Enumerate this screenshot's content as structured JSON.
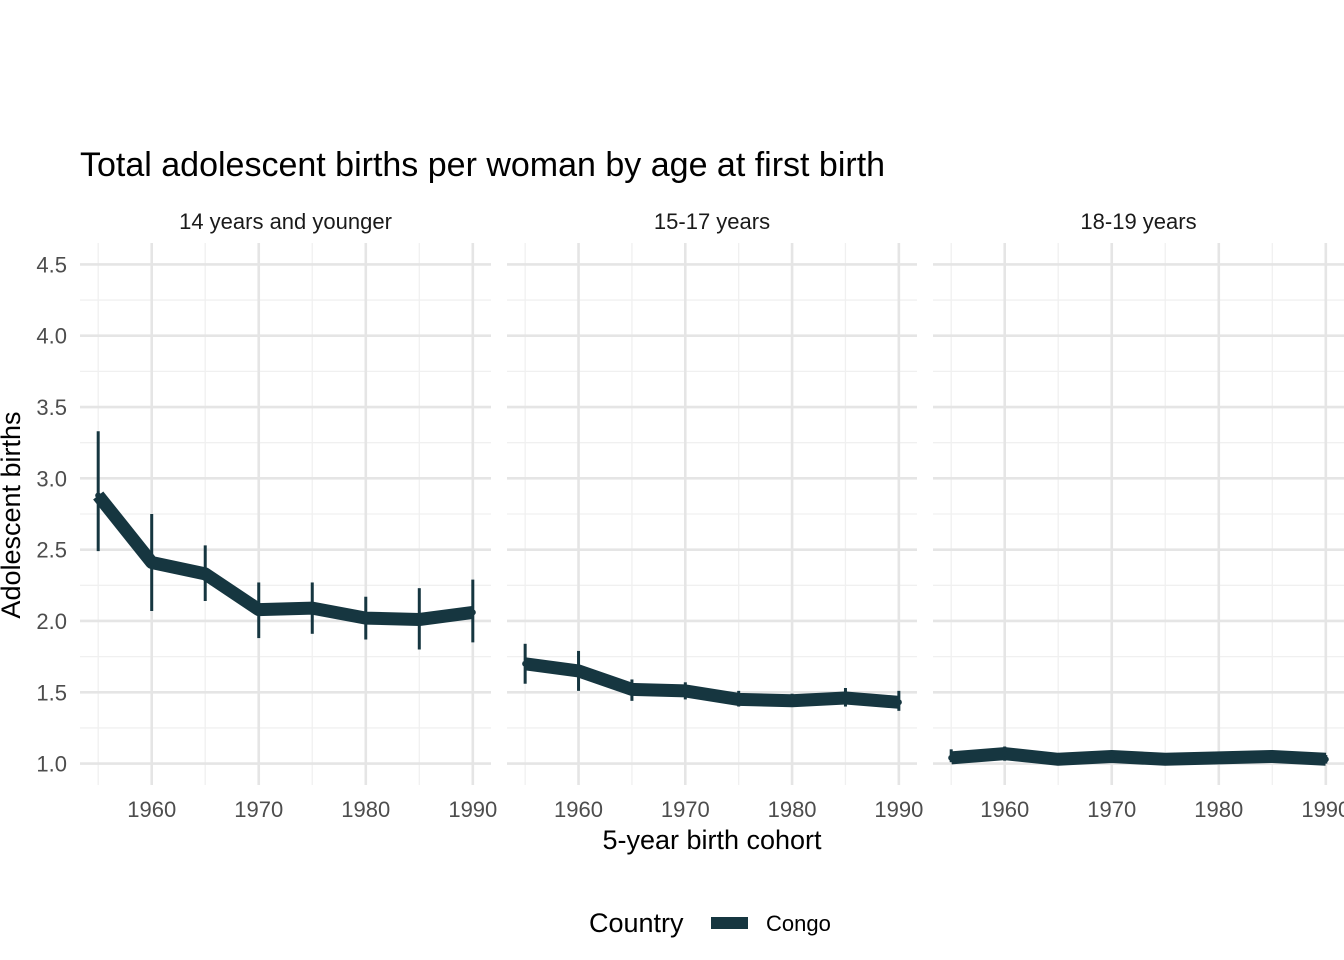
{
  "chart_data": {
    "type": "line",
    "title": "Total adolescent births per woman by age at first birth",
    "xlabel": "5-year birth cohort",
    "ylabel": "Adolescent births",
    "ylim": [
      0.85,
      4.65
    ],
    "xlim": [
      1953.3,
      1991.7
    ],
    "y_ticks": [
      1.0,
      1.5,
      2.0,
      2.5,
      3.0,
      3.5,
      4.0,
      4.5
    ],
    "y_tick_labels": [
      "1.0",
      "1.5",
      "2.0",
      "2.5",
      "3.0",
      "3.5",
      "4.0",
      "4.5"
    ],
    "x_ticks": [
      1960,
      1970,
      1980,
      1990
    ],
    "x_tick_labels": [
      "1960",
      "1970",
      "1980",
      "1990"
    ],
    "grid": true,
    "legend": {
      "title": "Country",
      "position": "bottom",
      "entries": [
        {
          "label": "Congo",
          "color": "#163640"
        }
      ]
    },
    "x": [
      1955,
      1960,
      1965,
      1970,
      1975,
      1980,
      1985,
      1990
    ],
    "facets": [
      {
        "label": "14 years and younger",
        "series": [
          {
            "name": "Congo",
            "color": "#163640",
            "values": [
              2.88,
              2.41,
              2.33,
              2.08,
              2.09,
              2.02,
              2.01,
              2.06
            ],
            "ci_low": [
              2.49,
              2.07,
              2.14,
              1.88,
              1.91,
              1.87,
              1.8,
              1.85
            ],
            "ci_high": [
              3.33,
              2.75,
              2.53,
              2.27,
              2.27,
              2.17,
              2.23,
              2.29
            ]
          }
        ]
      },
      {
        "label": "15-17 years",
        "series": [
          {
            "name": "Congo",
            "color": "#163640",
            "values": [
              1.7,
              1.65,
              1.52,
              1.51,
              1.45,
              1.44,
              1.46,
              1.43
            ],
            "ci_low": [
              1.56,
              1.51,
              1.44,
              1.45,
              1.4,
              1.41,
              1.4,
              1.37
            ],
            "ci_high": [
              1.84,
              1.79,
              1.59,
              1.57,
              1.51,
              1.49,
              1.53,
              1.51
            ]
          }
        ]
      },
      {
        "label": "18-19 years",
        "series": [
          {
            "name": "Congo",
            "color": "#163640",
            "values": [
              1.04,
              1.07,
              1.03,
              1.05,
              1.03,
              1.04,
              1.05,
              1.03
            ],
            "ci_low": [
              1.01,
              1.02,
              1.0,
              1.02,
              1.01,
              1.01,
              1.02,
              1.0
            ],
            "ci_high": [
              1.1,
              1.12,
              1.07,
              1.08,
              1.06,
              1.07,
              1.08,
              1.06
            ]
          }
        ]
      }
    ]
  }
}
